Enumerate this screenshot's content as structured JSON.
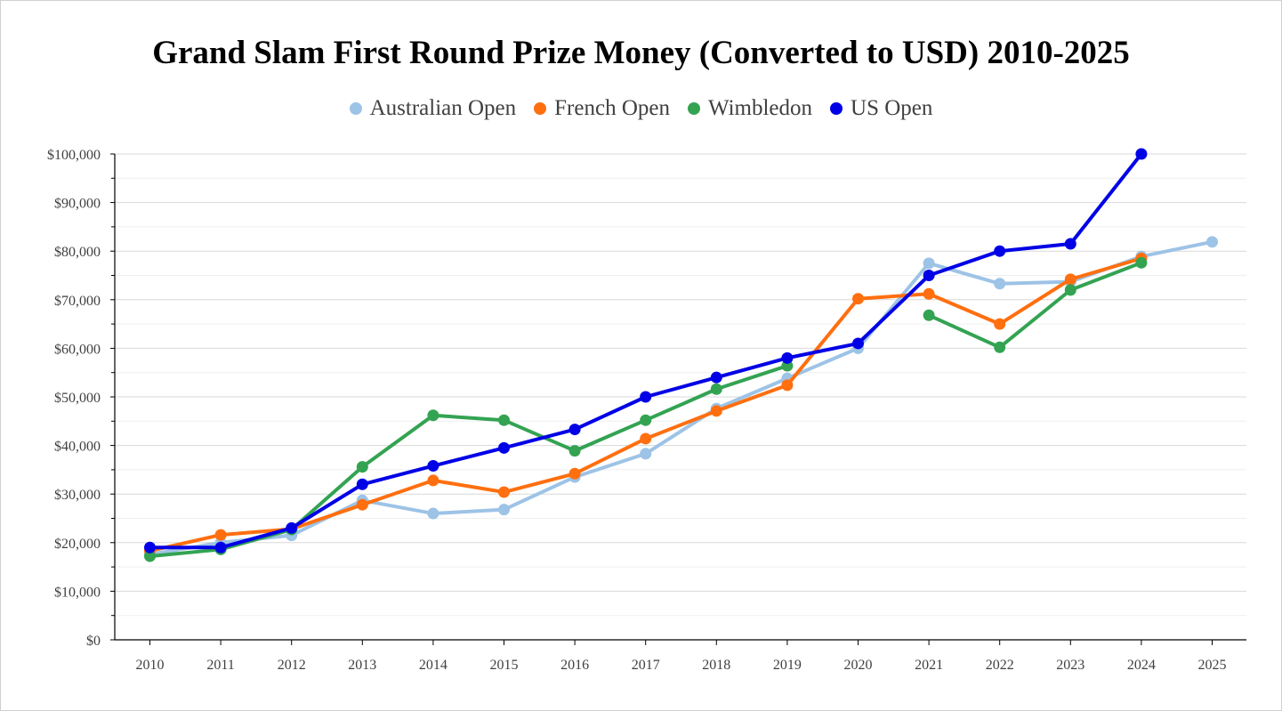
{
  "chart_data": {
    "type": "line",
    "title": "Grand Slam First Round Prize Money (Converted to USD) 2010-2025",
    "xlabel": "",
    "ylabel": "",
    "ylim": [
      0,
      100000
    ],
    "ytick_values": [
      0,
      10000,
      20000,
      30000,
      40000,
      50000,
      60000,
      70000,
      80000,
      90000,
      100000
    ],
    "ytick_labels": [
      "$0",
      "$10,000",
      "$20,000",
      "$30,000",
      "$40,000",
      "$50,000",
      "$60,000",
      "$70,000",
      "$80,000",
      "$90,000",
      "$100,000"
    ],
    "categories": [
      "2010",
      "2011",
      "2012",
      "2013",
      "2014",
      "2015",
      "2016",
      "2017",
      "2018",
      "2019",
      "2020",
      "2021",
      "2022",
      "2023",
      "2024",
      "2025"
    ],
    "grid": true,
    "legend_position": "top",
    "series": [
      {
        "name": "Australian Open",
        "color": "#9dc3e6",
        "values": [
          17600,
          20000,
          21500,
          28700,
          26000,
          26800,
          33500,
          38300,
          47600,
          53800,
          60000,
          77500,
          73300,
          73700,
          78900,
          81900
        ]
      },
      {
        "name": "French Open",
        "color": "#ff6f0f",
        "values": [
          18300,
          21600,
          22800,
          27800,
          32800,
          30400,
          34200,
          41400,
          47100,
          52400,
          70200,
          71200,
          65000,
          74200,
          78500,
          null
        ]
      },
      {
        "name": "Wimbledon",
        "color": "#33a352",
        "values": [
          17200,
          18600,
          22700,
          35600,
          46200,
          45200,
          38900,
          45200,
          51600,
          56400,
          null,
          66800,
          60200,
          72000,
          77600,
          null
        ]
      },
      {
        "name": "US Open",
        "color": "#0000e6",
        "values": [
          19000,
          19000,
          23000,
          32000,
          35800,
          39500,
          43300,
          50000,
          54000,
          58000,
          61000,
          75000,
          80000,
          81500,
          100000,
          null
        ]
      }
    ]
  }
}
